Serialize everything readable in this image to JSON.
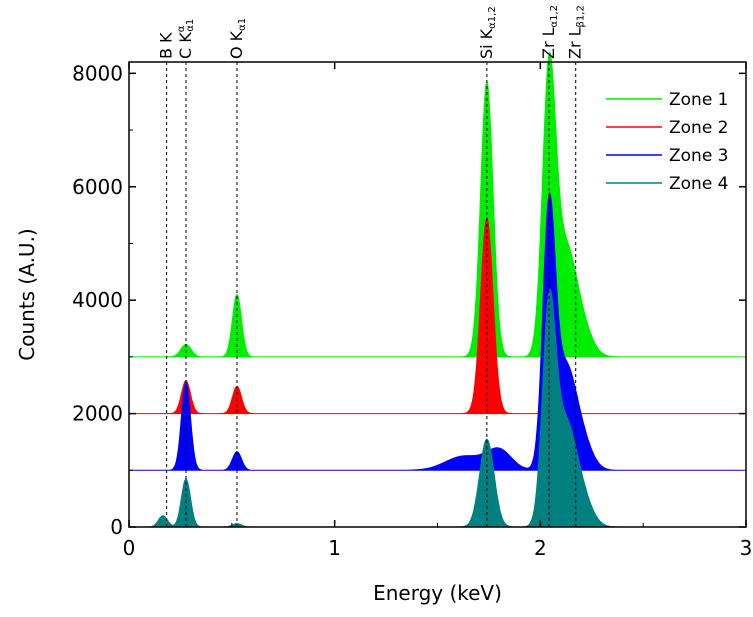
{
  "chart_data": {
    "type": "area",
    "title": "",
    "xlabel": "Energy (keV)",
    "ylabel": "Counts (A.U.)",
    "xlim": [
      0,
      3
    ],
    "ylim": [
      0,
      8200
    ],
    "x_ticks": [
      0,
      1,
      2,
      3
    ],
    "x_tick_labels": [
      "0",
      "1",
      "2",
      "3"
    ],
    "y_ticks": [
      0,
      2000,
      4000,
      6000,
      8000
    ],
    "y_tick_labels": [
      "0",
      "2000",
      "4000",
      "6000",
      "8000"
    ],
    "grid": false,
    "legend_position": "top-right",
    "peak_lines": [
      {
        "x": 0.183,
        "label": "B K",
        "sup": "",
        "sub": ""
      },
      {
        "x": 0.277,
        "label": "C K",
        "sup": "α",
        "sub": "α1"
      },
      {
        "x": 0.525,
        "label": "O K",
        "sup": "",
        "sub": "α1"
      },
      {
        "x": 1.74,
        "label": "Si K",
        "sup": "",
        "sub": "α1,2"
      },
      {
        "x": 2.042,
        "label": "Zr L",
        "sup": "",
        "sub": "α1,2"
      },
      {
        "x": 2.172,
        "label": "Zr L",
        "sup": "",
        "sub": "β1,2"
      }
    ],
    "series": [
      {
        "name": "Zone 1",
        "color": "#00ee00",
        "offset": 3000,
        "peaks": [
          {
            "center": 0.277,
            "width": 0.025,
            "height": 220
          },
          {
            "center": 0.525,
            "width": 0.022,
            "height": 1100
          },
          {
            "center": 1.74,
            "width": 0.03,
            "height": 4850
          },
          {
            "center": 2.042,
            "width": 0.032,
            "height": 4800
          },
          {
            "center": 2.12,
            "width": 0.05,
            "height": 1800
          },
          {
            "center": 2.2,
            "width": 0.05,
            "height": 500
          }
        ]
      },
      {
        "name": "Zone 2",
        "color": "#ff0000",
        "offset": 2000,
        "peaks": [
          {
            "center": 0.277,
            "width": 0.022,
            "height": 580
          },
          {
            "center": 0.525,
            "width": 0.022,
            "height": 480
          },
          {
            "center": 1.74,
            "width": 0.03,
            "height": 3450
          }
        ]
      },
      {
        "name": "Zone 3",
        "color": "#0000ff",
        "offset": 1000,
        "peaks": [
          {
            "center": 0.277,
            "width": 0.022,
            "height": 1550
          },
          {
            "center": 0.525,
            "width": 0.022,
            "height": 330
          },
          {
            "center": 1.63,
            "width": 0.09,
            "height": 250
          },
          {
            "center": 1.8,
            "width": 0.06,
            "height": 350
          },
          {
            "center": 2.042,
            "width": 0.03,
            "height": 4350
          },
          {
            "center": 2.12,
            "width": 0.05,
            "height": 1700
          },
          {
            "center": 2.2,
            "width": 0.05,
            "height": 500
          }
        ]
      },
      {
        "name": "Zone 4",
        "color": "#008080",
        "offset": 0,
        "peaks": [
          {
            "center": 0.165,
            "width": 0.022,
            "height": 200
          },
          {
            "center": 0.277,
            "width": 0.022,
            "height": 850
          },
          {
            "center": 0.525,
            "width": 0.022,
            "height": 60
          },
          {
            "center": 1.74,
            "width": 0.035,
            "height": 1550
          },
          {
            "center": 2.042,
            "width": 0.032,
            "height": 3650
          },
          {
            "center": 2.12,
            "width": 0.05,
            "height": 1700
          },
          {
            "center": 2.2,
            "width": 0.05,
            "height": 500
          }
        ]
      }
    ]
  }
}
